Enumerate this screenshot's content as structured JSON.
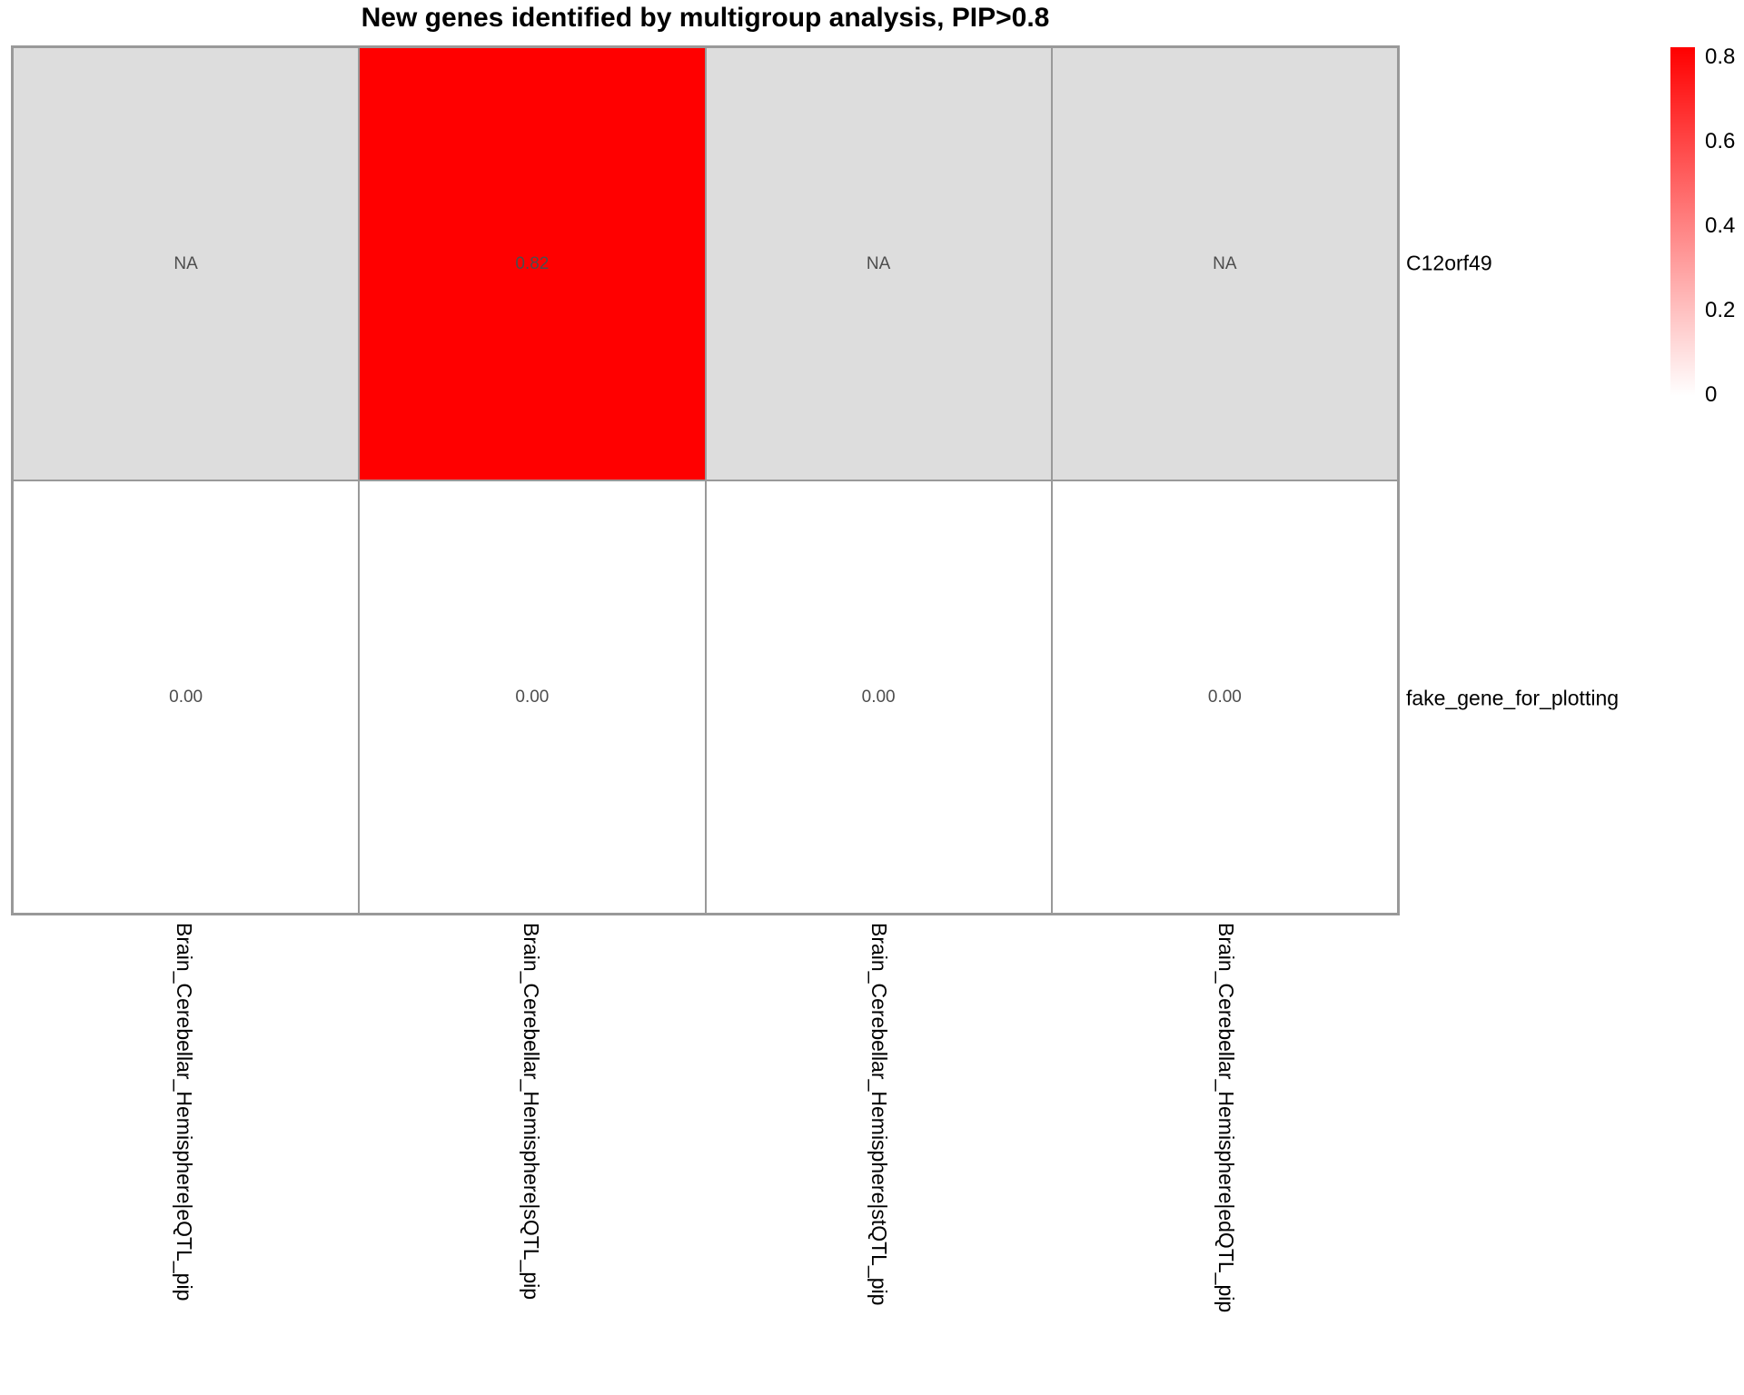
{
  "chart_data": {
    "type": "heatmap",
    "title": "New genes identified by multigroup analysis, PIP>0.8",
    "columns": [
      "Brain_Cerebellar_Hemisphere|eQTL_pip",
      "Brain_Cerebellar_Hemisphere|sQTL_pip",
      "Brain_Cerebellar_Hemisphere|stQTL_pip",
      "Brain_Cerebellar_Hemisphere|edQTL_pip"
    ],
    "rows": [
      "C12orf49",
      "fake_gene_for_plotting"
    ],
    "values": [
      [
        null,
        0.82,
        null,
        null
      ],
      [
        0.0,
        0.0,
        0.0,
        0.0
      ]
    ],
    "cell_labels": [
      [
        "NA",
        "0.82",
        "NA",
        "NA"
      ],
      [
        "0.00",
        "0.00",
        "0.00",
        "0.00"
      ]
    ],
    "colorbar": {
      "ticks": [
        "0.8",
        "0.6",
        "0.4",
        "0.2",
        "0"
      ],
      "min": 0,
      "max": 0.82,
      "color_high": "#ff0000",
      "color_low": "#ffffff",
      "position": "right"
    },
    "colors": {
      "na_cell": "#dddddd",
      "hit_cell": "#ff0000",
      "zero_cell": "#ffffff",
      "grid_line": "#999999",
      "cell_text": "#4d4d4d",
      "label_text": "#000000"
    },
    "grid": true,
    "legend_position": "top-right"
  }
}
